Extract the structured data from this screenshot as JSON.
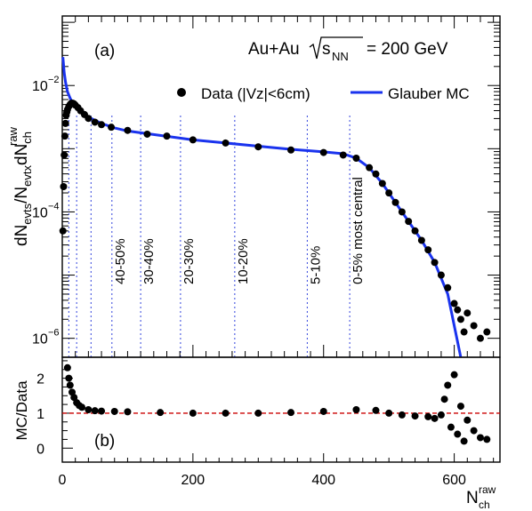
{
  "chart_data": [
    {
      "panel_label": "(a)",
      "type": "scatter",
      "annotation_parts": [
        "Au+Au",
        "s",
        "NN",
        "= 200 GeV"
      ],
      "ylabel_parts": [
        "dN",
        "evts",
        "/N",
        "evtx",
        "dN",
        "ch",
        "raw"
      ],
      "yscale": "log",
      "xlim": [
        0,
        670
      ],
      "ylim_log10": [
        -6.3,
        -0.9
      ],
      "yticks": [
        {
          "exp": -2,
          "label_base": "10",
          "label_exp": "−2"
        },
        {
          "exp": -4,
          "label_base": "10",
          "label_exp": "−4"
        },
        {
          "exp": -6,
          "label_base": "10",
          "label_exp": "−6"
        }
      ],
      "legend": {
        "placement": "top-right",
        "entries": [
          {
            "label": "Data (|Vz|<6cm)",
            "marker": "dot",
            "color": "#000000"
          },
          {
            "label": "Glauber MC",
            "marker": "line",
            "color": "#1a33ee"
          }
        ]
      },
      "centrality_cuts": [
        {
          "x": 10,
          "label": ""
        },
        {
          "x": 22,
          "label": ""
        },
        {
          "x": 44,
          "label": ""
        },
        {
          "x": 76,
          "label": "40-50%"
        },
        {
          "x": 120,
          "label": "30-40%"
        },
        {
          "x": 181,
          "label": "20-30%"
        },
        {
          "x": 264,
          "label": "10-20%"
        },
        {
          "x": 375,
          "label": "5-10%"
        },
        {
          "x": 440,
          "label": "0-5% most central"
        }
      ],
      "cut_line_color": "#3344dd",
      "series": [
        {
          "name": "Data (|Vz|<6cm)",
          "color": "#000000",
          "x": [
            1,
            2,
            3,
            4,
            5,
            6,
            7,
            8,
            10,
            12,
            14,
            16,
            18,
            20,
            24,
            28,
            34,
            40,
            50,
            60,
            75,
            100,
            130,
            160,
            200,
            250,
            300,
            350,
            400,
            430,
            450,
            470,
            480,
            490,
            500,
            510,
            520,
            530,
            540,
            550,
            560,
            570,
            580,
            590,
            600,
            605,
            610,
            615,
            620,
            630,
            640,
            650
          ],
          "log10y": [
            -4.3,
            -3.6,
            -3.1,
            -2.8,
            -2.6,
            -2.47,
            -2.42,
            -2.38,
            -2.33,
            -2.3,
            -2.28,
            -2.28,
            -2.29,
            -2.31,
            -2.35,
            -2.4,
            -2.46,
            -2.52,
            -2.58,
            -2.62,
            -2.66,
            -2.71,
            -2.77,
            -2.8,
            -2.86,
            -2.91,
            -2.97,
            -3.02,
            -3.06,
            -3.1,
            -3.15,
            -3.3,
            -3.4,
            -3.55,
            -3.7,
            -3.85,
            -4.0,
            -4.15,
            -4.3,
            -4.45,
            -4.6,
            -4.8,
            -5.0,
            -5.2,
            -5.45,
            -5.55,
            -5.7,
            -5.9,
            -5.6,
            -5.8,
            -6.0,
            -5.9
          ]
        },
        {
          "name": "Glauber MC",
          "color": "#1a33ee",
          "x": [
            1,
            3,
            5,
            8,
            12,
            16,
            20,
            30,
            40,
            60,
            80,
            100,
            150,
            200,
            250,
            300,
            350,
            400,
            430,
            450,
            470,
            490,
            510,
            530,
            550,
            570,
            590,
            600,
            610
          ],
          "log10y": [
            -1.55,
            -1.8,
            -1.95,
            -2.1,
            -2.2,
            -2.28,
            -2.33,
            -2.42,
            -2.5,
            -2.6,
            -2.67,
            -2.72,
            -2.79,
            -2.86,
            -2.91,
            -2.96,
            -3.01,
            -3.05,
            -3.08,
            -3.15,
            -3.3,
            -3.55,
            -3.85,
            -4.15,
            -4.45,
            -4.8,
            -5.3,
            -5.8,
            -6.3
          ]
        }
      ]
    },
    {
      "panel_label": "(b)",
      "type": "scatter",
      "ylabel": "MC/Data",
      "xlabel_parts": [
        "N",
        "ch",
        "raw"
      ],
      "xlim": [
        0,
        670
      ],
      "ylim": [
        -0.4,
        2.6
      ],
      "xticks": [
        0,
        200,
        400,
        600
      ],
      "yticks": [
        0,
        1,
        2
      ],
      "reference_line": {
        "y": 1,
        "color": "#cc0000"
      },
      "series": [
        {
          "name": "MC/Data",
          "color": "#000000",
          "x": [
            8,
            10,
            12,
            15,
            18,
            22,
            26,
            30,
            40,
            50,
            60,
            80,
            100,
            150,
            200,
            250,
            300,
            350,
            400,
            450,
            480,
            500,
            520,
            540,
            560,
            570,
            580,
            585,
            590,
            595,
            600,
            605,
            610,
            615,
            620,
            630,
            640,
            650
          ],
          "y": [
            2.3,
            2.0,
            1.8,
            1.6,
            1.45,
            1.3,
            1.22,
            1.17,
            1.1,
            1.07,
            1.06,
            1.05,
            1.04,
            1.02,
            1.0,
            1.0,
            1.0,
            1.02,
            1.05,
            1.1,
            1.08,
            1.0,
            0.95,
            0.92,
            0.9,
            0.85,
            0.95,
            1.4,
            1.8,
            0.6,
            2.1,
            0.4,
            1.2,
            0.2,
            0.8,
            0.5,
            0.3,
            0.25
          ]
        }
      ]
    }
  ]
}
